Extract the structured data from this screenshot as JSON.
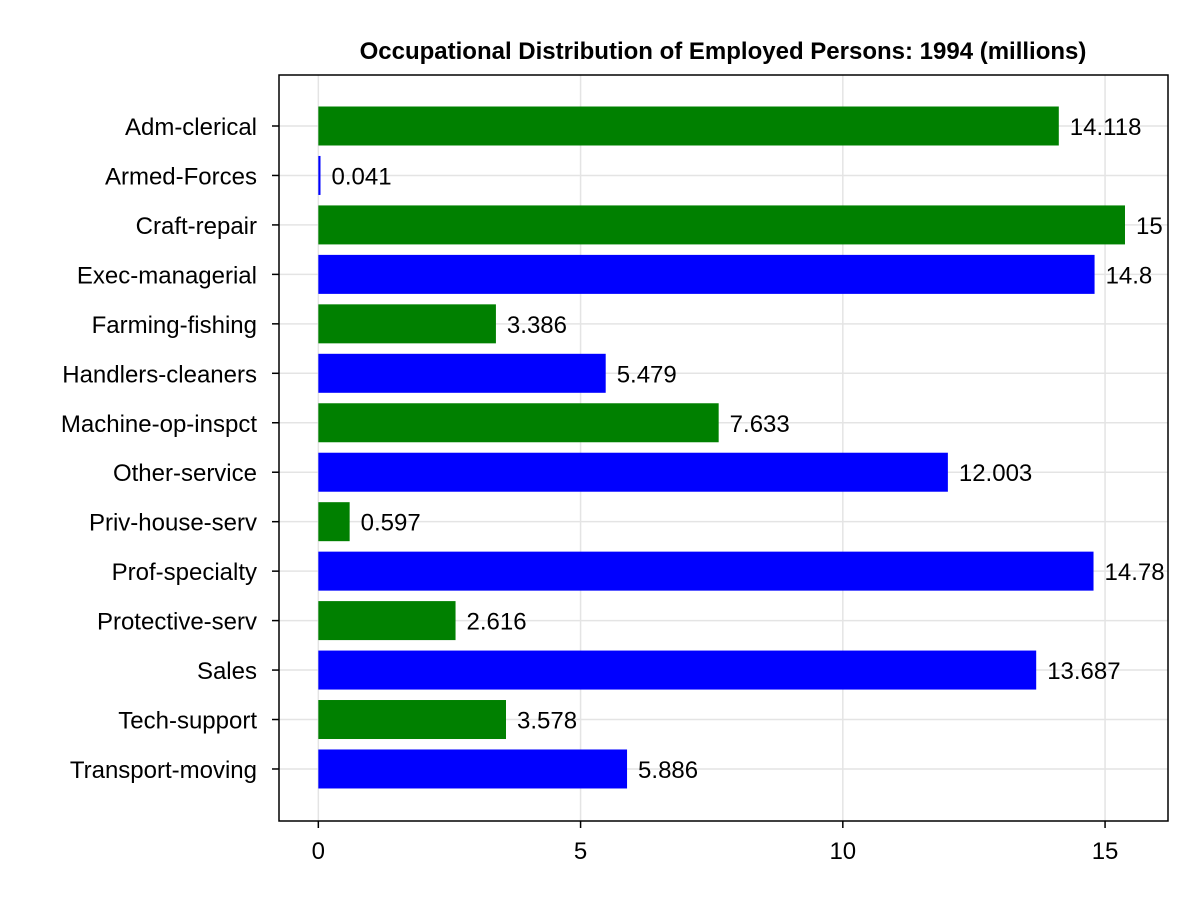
{
  "chart_data": {
    "type": "bar",
    "orientation": "horizontal",
    "title": "Occupational Distribution of Employed Persons: 1994 (millions)",
    "xlabel": "",
    "ylabel": "",
    "xlim": [
      -0.75,
      16.2
    ],
    "xticks": [
      0,
      5,
      10,
      15
    ],
    "grid": true,
    "categories": [
      "Adm-clerical",
      "Armed-Forces",
      "Craft-repair",
      "Exec-managerial",
      "Farming-fishing",
      "Handlers-cleaners",
      "Machine-op-inspct",
      "Other-service",
      "Priv-house-serv",
      "Prof-specialty",
      "Protective-serv",
      "Sales",
      "Tech-support",
      "Transport-moving"
    ],
    "values": [
      14.118,
      0.041,
      15.38,
      14.8,
      3.386,
      5.479,
      7.633,
      12.003,
      0.597,
      14.78,
      2.616,
      13.687,
      3.578,
      5.886
    ],
    "value_labels": [
      "14.118",
      "0.041",
      "15",
      "14.8",
      "3.386",
      "5.479",
      "7.633",
      "12.003",
      "0.597",
      "14.78",
      "2.616",
      "13.687",
      "3.578",
      "5.886"
    ],
    "bar_colors": [
      "#008000",
      "#0000ff",
      "#008000",
      "#0000ff",
      "#008000",
      "#0000ff",
      "#008000",
      "#0000ff",
      "#008000",
      "#0000ff",
      "#008000",
      "#0000ff",
      "#008000",
      "#0000ff"
    ]
  }
}
